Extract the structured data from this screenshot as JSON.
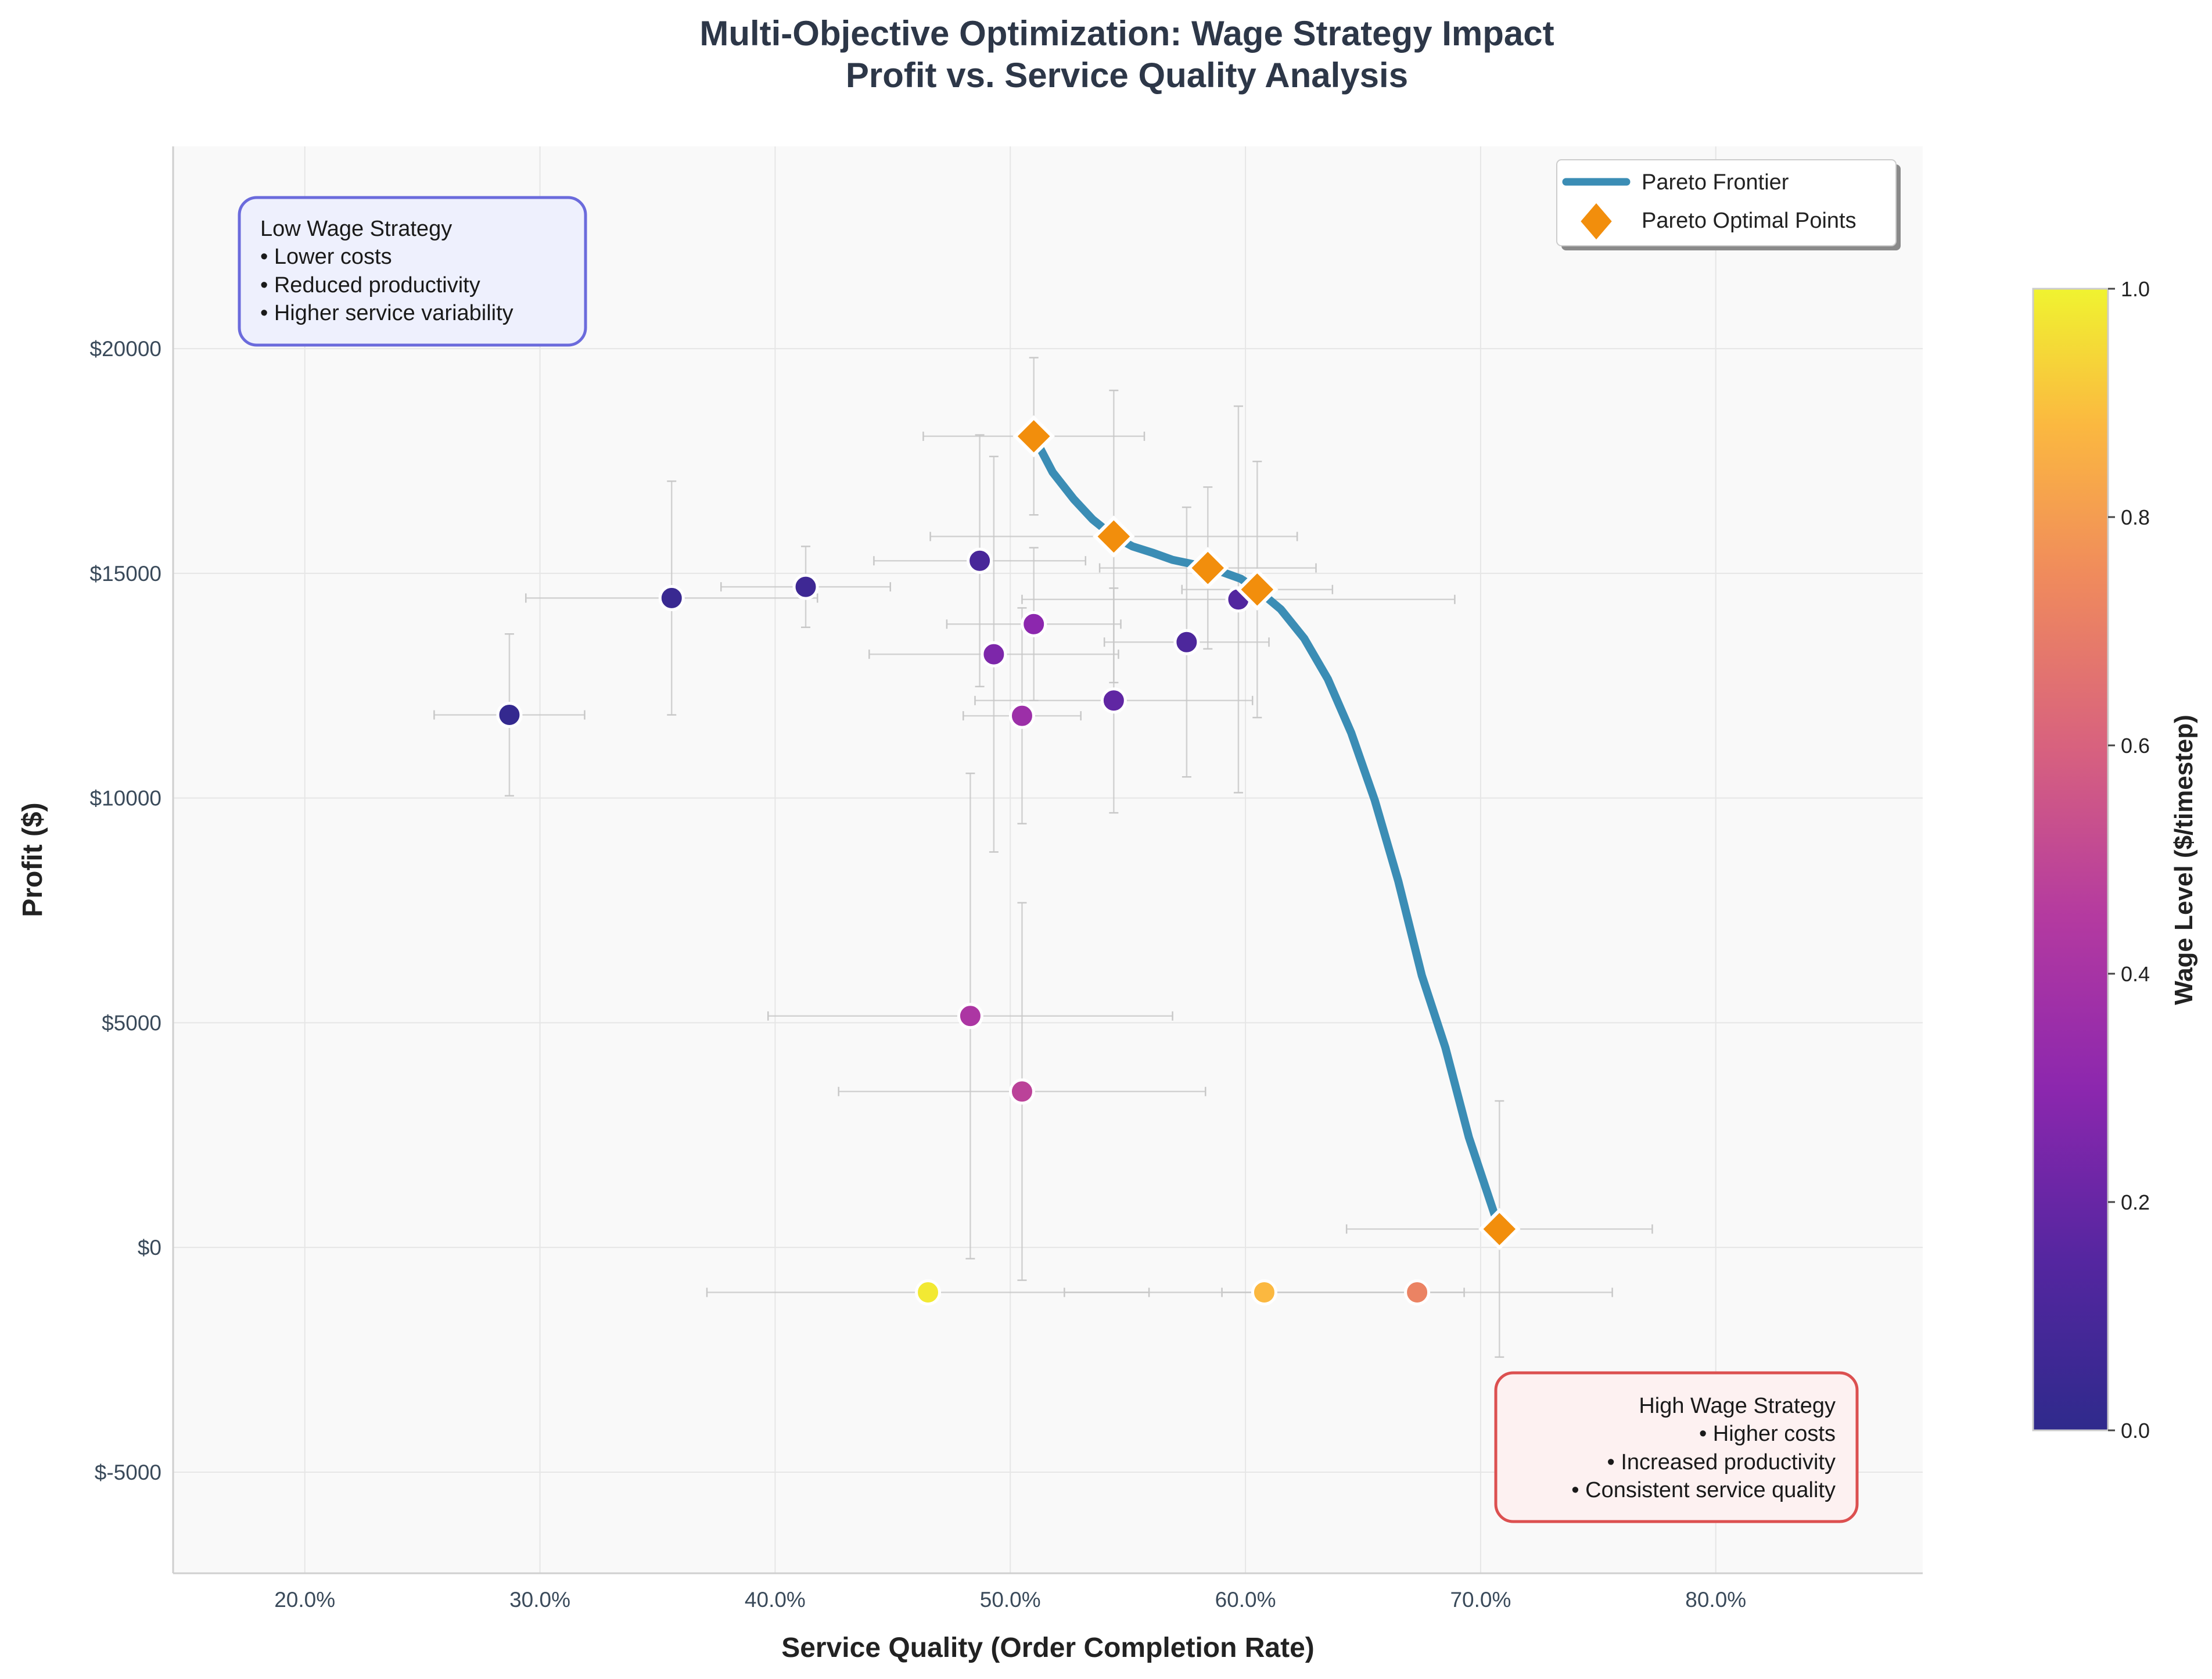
{
  "chart_data": {
    "type": "scatter",
    "title": "Multi-Objective Optimization: Wage Strategy Impact",
    "subtitle": "Profit vs. Service Quality Analysis",
    "xlabel": "Service Quality (Order Completion Rate)",
    "ylabel": "Profit ($)",
    "xlim": [
      0.144,
      0.888
    ],
    "ylim": [
      -7250,
      24500
    ],
    "x_ticks": [
      0.2,
      0.3,
      0.4,
      0.5,
      0.6,
      0.7,
      0.8
    ],
    "x_tick_labels": [
      "20.0%",
      "30.0%",
      "40.0%",
      "50.0%",
      "60.0%",
      "70.0%",
      "80.0%"
    ],
    "y_ticks": [
      -5000,
      0,
      5000,
      10000,
      15000,
      20000
    ],
    "y_tick_labels": [
      "$-5000",
      "$0",
      "$5000",
      "$10000",
      "$15000",
      "$20000"
    ],
    "grid": true,
    "colorbar": {
      "label": "Wage Level ($/timestep)",
      "range": [
        0,
        1
      ],
      "ticks": [
        0,
        0.2,
        0.4,
        0.6,
        0.8,
        1.0
      ],
      "tick_labels": [
        "0.0",
        "0.2",
        "0.4",
        "0.6",
        "0.8",
        "1.0"
      ],
      "colormap": "plasma"
    },
    "series": [
      {
        "type": "scatter",
        "points": [
          {
            "x": 0.287,
            "y": 11850,
            "wage": 0.02,
            "xerr": 0.032,
            "yerr": 1800
          },
          {
            "x": 0.356,
            "y": 14450,
            "wage": 0.04,
            "xerr": 0.062,
            "yerr": 2600
          },
          {
            "x": 0.413,
            "y": 14700,
            "wage": 0.06,
            "xerr": 0.036,
            "yerr": 900
          },
          {
            "x": 0.487,
            "y": 15280,
            "wage": 0.1,
            "xerr": 0.045,
            "yerr": 2800
          },
          {
            "x": 0.51,
            "y": 13870,
            "wage": 0.3,
            "xerr": 0.037,
            "yerr": 1700
          },
          {
            "x": 0.493,
            "y": 13200,
            "wage": 0.26,
            "xerr": 0.053,
            "yerr": 4400
          },
          {
            "x": 0.505,
            "y": 11830,
            "wage": 0.36,
            "xerr": 0.025,
            "yerr": 2400
          },
          {
            "x": 0.544,
            "y": 12170,
            "wage": 0.18,
            "xerr": 0.059,
            "yerr": 2500
          },
          {
            "x": 0.575,
            "y": 13470,
            "wage": 0.12,
            "xerr": 0.035,
            "yerr": 3000
          },
          {
            "x": 0.597,
            "y": 14420,
            "wage": 0.14,
            "xerr": 0.092,
            "yerr": 4300
          },
          {
            "x": 0.483,
            "y": 5150,
            "wage": 0.42,
            "xerr": 0.086,
            "yerr": 5400
          },
          {
            "x": 0.505,
            "y": 3470,
            "wage": 0.48,
            "xerr": 0.078,
            "yerr": 4200
          },
          {
            "x": 0.465,
            "y": -1000,
            "wage": 0.98,
            "xerr": 0.094,
            "yerr": 0
          },
          {
            "x": 0.608,
            "y": -1000,
            "wage": 0.88,
            "xerr": 0.085,
            "yerr": 0
          },
          {
            "x": 0.673,
            "y": -1000,
            "wage": 0.72,
            "xerr": 0.083,
            "yerr": 0
          }
        ]
      },
      {
        "name": "Pareto Optimal Points",
        "type": "scatter",
        "color": "#f28e0c",
        "points": [
          {
            "x": 0.51,
            "y": 18050,
            "xerr": 0.047,
            "yerr": 1750
          },
          {
            "x": 0.544,
            "y": 15820,
            "xerr": 0.078,
            "yerr": 3250
          },
          {
            "x": 0.584,
            "y": 15120,
            "xerr": 0.046,
            "yerr": 1800
          },
          {
            "x": 0.605,
            "y": 14640,
            "xerr": 0.032,
            "yerr": 2850
          },
          {
            "x": 0.708,
            "y": 410,
            "xerr": 0.065,
            "yerr": 2850
          }
        ]
      },
      {
        "name": "Pareto Frontier",
        "type": "line",
        "color": "#3b8db5",
        "x": [
          0.51,
          0.518,
          0.527,
          0.535,
          0.544,
          0.552,
          0.561,
          0.569,
          0.578,
          0.584,
          0.59,
          0.598,
          0.605,
          0.615,
          0.625,
          0.635,
          0.645,
          0.655,
          0.665,
          0.675,
          0.685,
          0.695,
          0.702,
          0.708
        ],
        "y": [
          18050,
          17250,
          16650,
          16200,
          15820,
          15600,
          15450,
          15300,
          15200,
          15120,
          15030,
          14880,
          14640,
          14200,
          13550,
          12650,
          11450,
          9950,
          8150,
          6050,
          4450,
          2450,
          1350,
          410
        ]
      }
    ],
    "legend": {
      "placement": "top-right",
      "entries": [
        "Pareto Frontier",
        "Pareto Optimal Points"
      ]
    },
    "annotations": [
      {
        "placement": "top-left",
        "lines": [
          "Low Wage Strategy",
          "• Lower costs",
          "• Reduced productivity",
          "• Higher service variability"
        ],
        "border_color": "#6b6bdc",
        "fill_color": "#eef0fd"
      },
      {
        "placement": "bottom-right",
        "lines": [
          "High Wage Strategy",
          "• Higher costs",
          "• Increased productivity",
          "• Consistent service quality"
        ],
        "border_color": "#dc5050",
        "fill_color": "#fdf1f1"
      }
    ]
  }
}
